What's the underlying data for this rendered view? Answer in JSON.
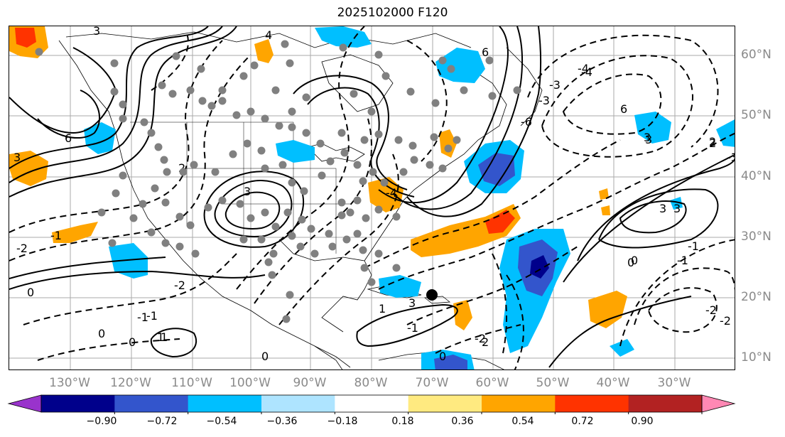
{
  "title": "2025102000 F120",
  "lon_labels": [
    "130°W",
    "120°W",
    "110°W",
    "100°W",
    "90°W",
    "80°W",
    "70°W",
    "60°W",
    "50°W",
    "40°W",
    "30°W"
  ],
  "lat_labels": [
    "60°N",
    "50°N",
    "40°N",
    "30°N",
    "20°N",
    "10°N"
  ],
  "contour_labels": [
    "3",
    "6",
    "4",
    "3",
    "2",
    "0",
    "6",
    "3",
    "3",
    "2",
    "-2",
    "-1",
    "0",
    "-1",
    "-2",
    "0",
    "0",
    "1",
    "-1",
    "1",
    "0",
    "3",
    "-6",
    "-4",
    "-1",
    "-4",
    "-2",
    "-3",
    "-3",
    "-2",
    "0",
    "3",
    "-3",
    "-1",
    "0",
    "-2",
    "-4",
    "-1",
    "1",
    "3",
    "2",
    "2",
    "6",
    "3"
  ],
  "colorbar": {
    "ticks": [
      "−0.90",
      "−0.72",
      "−0.54",
      "−0.36",
      "−0.18",
      "0.18",
      "0.36",
      "0.54",
      "0.72",
      "0.90"
    ],
    "colors": [
      "#9933cc",
      "#00008b",
      "#3355cc",
      "#00bfff",
      "#aee4ff",
      "#ffffff",
      "#ffea80",
      "#ffa500",
      "#ff3300",
      "#b22222",
      "#ff88b4"
    ]
  },
  "map_colors": {
    "blue_light": "#00bfff",
    "blue_mid": "#3355cc",
    "blue_dark": "#00008b",
    "orange": "#ffa500",
    "red": "#ff3300",
    "station_dots": "#808080"
  }
}
